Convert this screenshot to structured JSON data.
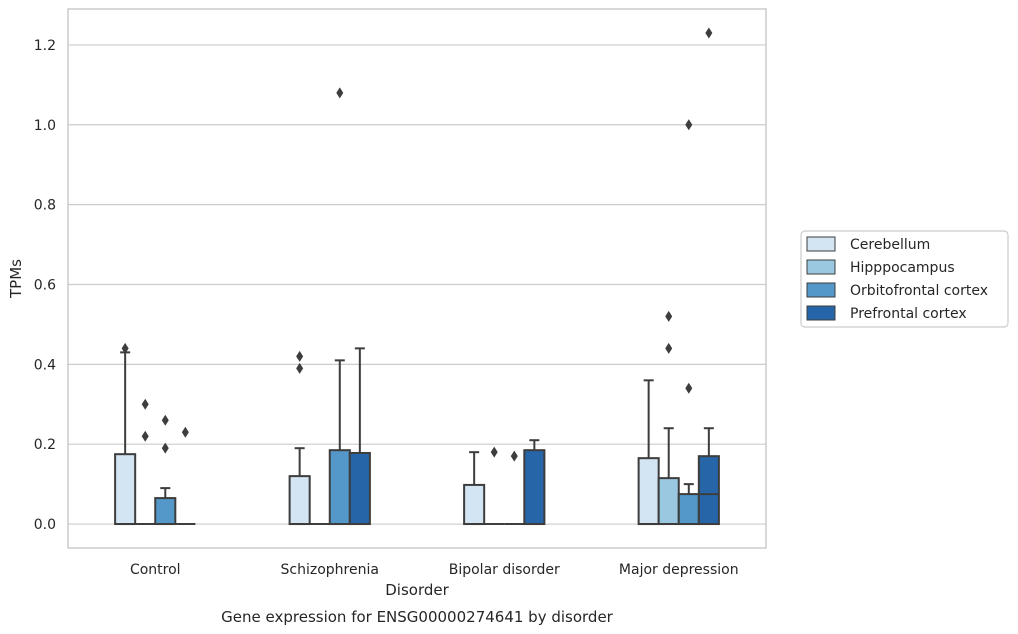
{
  "chart_data": {
    "type": "box",
    "caption": "Gene expression for ENSG00000274641 by disorder",
    "xlabel": "Disorder",
    "ylabel": "TPMs",
    "ylim": [
      -0.06,
      1.29
    ],
    "yticks": [
      "0.0",
      "0.2",
      "0.4",
      "0.6",
      "0.8",
      "1.0",
      "1.2"
    ],
    "grid": "horizontal",
    "legend_position": "right",
    "categories": [
      "Control",
      "Schizophrenia",
      "Bipolar disorder",
      "Major depression"
    ],
    "series": [
      {
        "name": "Cerebellum",
        "color": "#d3e4f3",
        "boxes": [
          {
            "q1": 0.0,
            "median": 0.0,
            "q3": 0.175,
            "whisker_low": 0.0,
            "whisker_high": 0.43,
            "outliers": [
              0.44
            ]
          },
          {
            "q1": 0.0,
            "median": 0.0,
            "q3": 0.12,
            "whisker_low": 0.0,
            "whisker_high": 0.19,
            "outliers": [
              0.39,
              0.42
            ]
          },
          {
            "q1": 0.0,
            "median": 0.0,
            "q3": 0.098,
            "whisker_low": 0.0,
            "whisker_high": 0.18,
            "outliers": []
          },
          {
            "q1": 0.0,
            "median": 0.0,
            "q3": 0.165,
            "whisker_low": 0.0,
            "whisker_high": 0.36,
            "outliers": []
          }
        ]
      },
      {
        "name": "Hipppocampus",
        "color": "#9ac8e0",
        "boxes": [
          {
            "q1": 0.0,
            "median": 0.0,
            "q3": 0.0,
            "whisker_low": 0.0,
            "whisker_high": 0.0,
            "outliers": [
              0.22,
              0.3
            ]
          },
          {
            "q1": 0.0,
            "median": 0.0,
            "q3": 0.0,
            "whisker_low": 0.0,
            "whisker_high": 0.0,
            "outliers": []
          },
          {
            "q1": 0.0,
            "median": 0.0,
            "q3": 0.0,
            "whisker_low": 0.0,
            "whisker_high": 0.0,
            "outliers": [
              0.18
            ]
          },
          {
            "q1": 0.0,
            "median": 0.0,
            "q3": 0.115,
            "whisker_low": 0.0,
            "whisker_high": 0.24,
            "outliers": [
              0.44,
              0.52
            ]
          }
        ]
      },
      {
        "name": "Orbitofrontal cortex",
        "color": "#5398c8",
        "boxes": [
          {
            "q1": 0.0,
            "median": 0.0,
            "q3": 0.065,
            "whisker_low": 0.0,
            "whisker_high": 0.09,
            "outliers": [
              0.19,
              0.26
            ]
          },
          {
            "q1": 0.0,
            "median": 0.0,
            "q3": 0.185,
            "whisker_low": 0.0,
            "whisker_high": 0.41,
            "outliers": [
              1.08
            ]
          },
          {
            "q1": 0.0,
            "median": 0.0,
            "q3": 0.0,
            "whisker_low": 0.0,
            "whisker_high": 0.0,
            "outliers": [
              0.17
            ]
          },
          {
            "q1": 0.0,
            "median": 0.0,
            "q3": 0.075,
            "whisker_low": 0.0,
            "whisker_high": 0.1,
            "outliers": [
              0.34,
              1.0
            ]
          }
        ]
      },
      {
        "name": "Prefrontal cortex",
        "color": "#2666a8",
        "boxes": [
          {
            "q1": 0.0,
            "median": 0.0,
            "q3": 0.0,
            "whisker_low": 0.0,
            "whisker_high": 0.0,
            "outliers": [
              0.23
            ]
          },
          {
            "q1": 0.0,
            "median": 0.0,
            "q3": 0.178,
            "whisker_low": 0.0,
            "whisker_high": 0.44,
            "outliers": []
          },
          {
            "q1": 0.0,
            "median": 0.0,
            "q3": 0.185,
            "whisker_low": 0.0,
            "whisker_high": 0.21,
            "outliers": []
          },
          {
            "q1": 0.0,
            "median": 0.075,
            "q3": 0.17,
            "whisker_low": 0.0,
            "whisker_high": 0.24,
            "outliers": [
              1.23
            ]
          }
        ]
      }
    ]
  }
}
